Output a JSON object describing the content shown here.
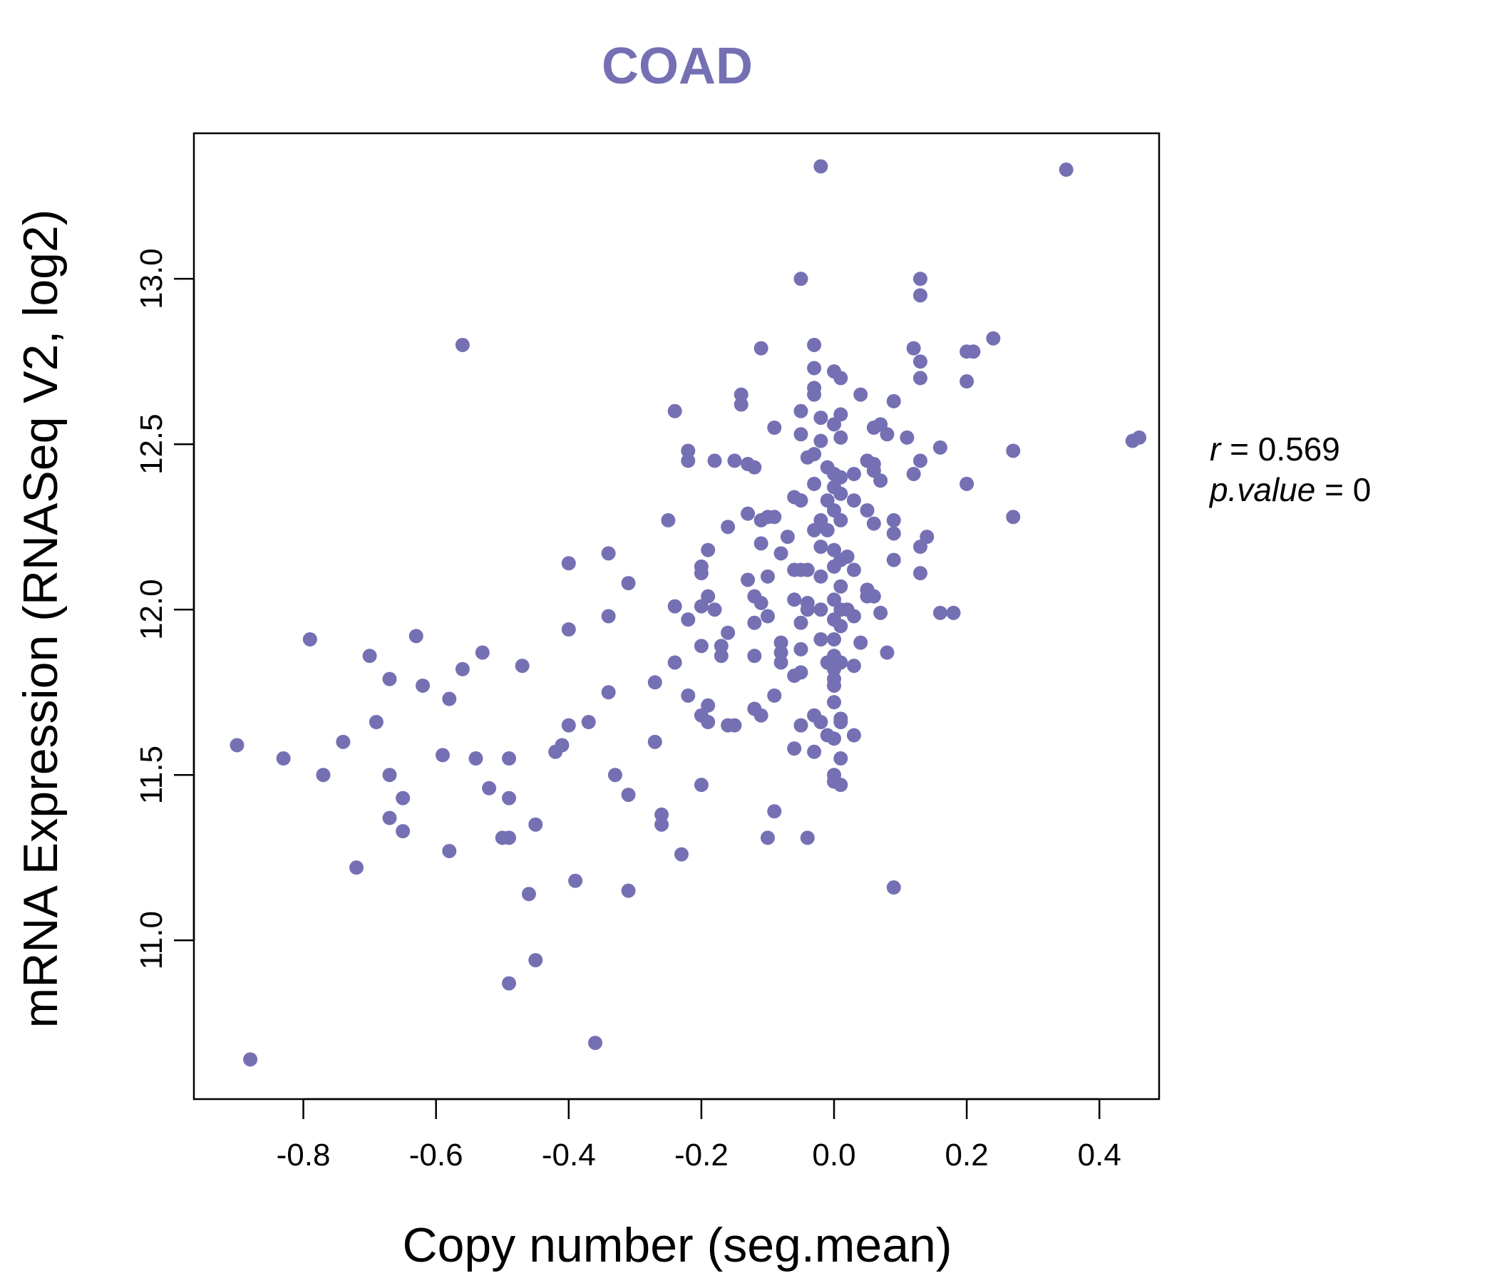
{
  "chart_data": {
    "type": "scatter",
    "title": "COAD",
    "xlabel": "Copy number (seg.mean)",
    "ylabel": "mRNA Expression (RNASeq V2, log2)",
    "xlim": [
      -0.965,
      0.49
    ],
    "ylim": [
      10.52,
      13.44
    ],
    "xticks": [
      -0.8,
      -0.6,
      -0.4,
      -0.2,
      0.0,
      0.2,
      0.4
    ],
    "xtick_labels": [
      "-0.8",
      "-0.6",
      "-0.4",
      "-0.2",
      "0.0",
      "0.2",
      "0.4"
    ],
    "yticks": [
      11.0,
      11.5,
      12.0,
      12.5,
      13.0
    ],
    "ytick_labels": [
      "11.0",
      "11.5",
      "12.0",
      "12.5",
      "13.0"
    ],
    "stats": {
      "r_label": "r",
      "r_value": "0.569",
      "p_label": "p.value",
      "p_value": "0"
    },
    "color": "#7570b3",
    "points": [
      [
        -0.02,
        13.34
      ],
      [
        0.35,
        13.33
      ],
      [
        -0.05,
        13.0
      ],
      [
        0.13,
        13.0
      ],
      [
        0.13,
        12.95
      ],
      [
        -0.56,
        12.8
      ],
      [
        -0.03,
        12.8
      ],
      [
        -0.11,
        12.79
      ],
      [
        0.12,
        12.79
      ],
      [
        0.2,
        12.78
      ],
      [
        0.21,
        12.78
      ],
      [
        0.24,
        12.82
      ],
      [
        0.13,
        12.75
      ],
      [
        0.0,
        12.72
      ],
      [
        -0.03,
        12.73
      ],
      [
        0.01,
        12.7
      ],
      [
        0.13,
        12.7
      ],
      [
        0.2,
        12.69
      ],
      [
        -0.03,
        12.67
      ],
      [
        -0.03,
        12.65
      ],
      [
        -0.14,
        12.65
      ],
      [
        0.04,
        12.65
      ],
      [
        -0.14,
        12.62
      ],
      [
        0.09,
        12.63
      ],
      [
        -0.24,
        12.6
      ],
      [
        -0.05,
        12.6
      ],
      [
        -0.02,
        12.58
      ],
      [
        0.01,
        12.59
      ],
      [
        0.0,
        12.56
      ],
      [
        0.06,
        12.55
      ],
      [
        0.07,
        12.56
      ],
      [
        -0.09,
        12.55
      ],
      [
        -0.05,
        12.53
      ],
      [
        0.08,
        12.53
      ],
      [
        0.01,
        12.52
      ],
      [
        0.11,
        12.52
      ],
      [
        -0.02,
        12.51
      ],
      [
        0.45,
        12.51
      ],
      [
        0.46,
        12.52
      ],
      [
        -0.22,
        12.48
      ],
      [
        0.16,
        12.49
      ],
      [
        0.27,
        12.48
      ],
      [
        -0.03,
        12.47
      ],
      [
        -0.04,
        12.46
      ],
      [
        -0.22,
        12.45
      ],
      [
        -0.18,
        12.45
      ],
      [
        -0.15,
        12.45
      ],
      [
        -0.13,
        12.44
      ],
      [
        0.05,
        12.45
      ],
      [
        0.06,
        12.44
      ],
      [
        0.13,
        12.45
      ],
      [
        -0.12,
        12.43
      ],
      [
        -0.01,
        12.43
      ],
      [
        0.0,
        12.41
      ],
      [
        0.03,
        12.41
      ],
      [
        0.06,
        12.42
      ],
      [
        0.12,
        12.41
      ],
      [
        0.01,
        12.4
      ],
      [
        0.07,
        12.39
      ],
      [
        0.2,
        12.38
      ],
      [
        -0.03,
        12.38
      ],
      [
        0.0,
        12.37
      ],
      [
        -0.06,
        12.34
      ],
      [
        -0.05,
        12.33
      ],
      [
        -0.01,
        12.33
      ],
      [
        0.01,
        12.35
      ],
      [
        0.03,
        12.33
      ],
      [
        0.0,
        12.3
      ],
      [
        0.05,
        12.3
      ],
      [
        -0.13,
        12.29
      ],
      [
        -0.1,
        12.28
      ],
      [
        -0.09,
        12.28
      ],
      [
        -0.11,
        12.27
      ],
      [
        -0.25,
        12.27
      ],
      [
        -0.02,
        12.27
      ],
      [
        0.01,
        12.27
      ],
      [
        0.27,
        12.28
      ],
      [
        0.06,
        12.26
      ],
      [
        0.09,
        12.27
      ],
      [
        -0.16,
        12.25
      ],
      [
        -0.03,
        12.24
      ],
      [
        -0.01,
        12.24
      ],
      [
        0.09,
        12.23
      ],
      [
        0.14,
        12.22
      ],
      [
        -0.07,
        12.22
      ],
      [
        -0.11,
        12.2
      ],
      [
        -0.02,
        12.19
      ],
      [
        0.0,
        12.18
      ],
      [
        0.01,
        12.15
      ],
      [
        0.13,
        12.19
      ],
      [
        -0.19,
        12.18
      ],
      [
        -0.08,
        12.17
      ],
      [
        -0.34,
        12.17
      ],
      [
        0.02,
        12.16
      ],
      [
        0.09,
        12.15
      ],
      [
        -0.4,
        12.14
      ],
      [
        -0.2,
        12.13
      ],
      [
        -0.06,
        12.12
      ],
      [
        -0.05,
        12.12
      ],
      [
        -0.04,
        12.12
      ],
      [
        0.0,
        12.13
      ],
      [
        0.03,
        12.12
      ],
      [
        0.13,
        12.11
      ],
      [
        -0.2,
        12.11
      ],
      [
        -0.13,
        12.09
      ],
      [
        -0.1,
        12.1
      ],
      [
        -0.02,
        12.1
      ],
      [
        -0.31,
        12.08
      ],
      [
        0.01,
        12.07
      ],
      [
        0.05,
        12.06
      ],
      [
        0.06,
        12.04
      ],
      [
        0.05,
        12.04
      ],
      [
        -0.19,
        12.04
      ],
      [
        -0.12,
        12.04
      ],
      [
        -0.06,
        12.03
      ],
      [
        -0.04,
        12.02
      ],
      [
        0.0,
        12.03
      ],
      [
        -0.11,
        12.02
      ],
      [
        -0.04,
        12.0
      ],
      [
        -0.02,
        12.0
      ],
      [
        0.01,
        12.0
      ],
      [
        0.02,
        12.0
      ],
      [
        -0.24,
        12.01
      ],
      [
        -0.2,
        12.01
      ],
      [
        -0.18,
        12.0
      ],
      [
        0.07,
        11.99
      ],
      [
        0.16,
        11.99
      ],
      [
        0.18,
        11.99
      ],
      [
        -0.22,
        11.97
      ],
      [
        -0.34,
        11.98
      ],
      [
        0.03,
        11.98
      ],
      [
        -0.12,
        11.96
      ],
      [
        -0.1,
        11.98
      ],
      [
        -0.05,
        11.96
      ],
      [
        0.0,
        11.97
      ],
      [
        0.01,
        11.95
      ],
      [
        -0.4,
        11.94
      ],
      [
        -0.16,
        11.93
      ],
      [
        -0.63,
        11.92
      ],
      [
        -0.79,
        11.91
      ],
      [
        -0.02,
        11.91
      ],
      [
        0.0,
        11.91
      ],
      [
        0.04,
        11.9
      ],
      [
        -0.08,
        11.9
      ],
      [
        -0.17,
        11.89
      ],
      [
        -0.2,
        11.89
      ],
      [
        -0.05,
        11.88
      ],
      [
        -0.08,
        11.87
      ],
      [
        0.08,
        11.87
      ],
      [
        0.0,
        11.86
      ],
      [
        -0.53,
        11.87
      ],
      [
        -0.12,
        11.86
      ],
      [
        -0.17,
        11.86
      ],
      [
        -0.7,
        11.86
      ],
      [
        0.01,
        11.84
      ],
      [
        0.03,
        11.83
      ],
      [
        -0.01,
        11.84
      ],
      [
        -0.08,
        11.84
      ],
      [
        -0.24,
        11.84
      ],
      [
        -0.47,
        11.83
      ],
      [
        -0.56,
        11.82
      ],
      [
        0.0,
        11.82
      ],
      [
        -0.05,
        11.81
      ],
      [
        -0.67,
        11.79
      ],
      [
        -0.06,
        11.8
      ],
      [
        0.0,
        11.79
      ],
      [
        -0.27,
        11.78
      ],
      [
        -0.62,
        11.77
      ],
      [
        0.0,
        11.77
      ],
      [
        -0.34,
        11.75
      ],
      [
        -0.22,
        11.74
      ],
      [
        -0.09,
        11.74
      ],
      [
        -0.58,
        11.73
      ],
      [
        0.0,
        11.72
      ],
      [
        -0.19,
        11.71
      ],
      [
        -0.12,
        11.7
      ],
      [
        -0.03,
        11.68
      ],
      [
        -0.2,
        11.68
      ],
      [
        -0.11,
        11.68
      ],
      [
        0.01,
        11.67
      ],
      [
        -0.02,
        11.66
      ],
      [
        0.01,
        11.66
      ],
      [
        -0.69,
        11.66
      ],
      [
        -0.37,
        11.66
      ],
      [
        -0.19,
        11.66
      ],
      [
        -0.05,
        11.65
      ],
      [
        -0.4,
        11.65
      ],
      [
        -0.16,
        11.65
      ],
      [
        -0.15,
        11.65
      ],
      [
        0.03,
        11.62
      ],
      [
        -0.01,
        11.62
      ],
      [
        0.0,
        11.61
      ],
      [
        -0.74,
        11.6
      ],
      [
        -0.27,
        11.6
      ],
      [
        -0.41,
        11.59
      ],
      [
        -0.9,
        11.59
      ],
      [
        -0.06,
        11.58
      ],
      [
        -0.03,
        11.57
      ],
      [
        -0.42,
        11.57
      ],
      [
        -0.59,
        11.56
      ],
      [
        0.01,
        11.55
      ],
      [
        -0.54,
        11.55
      ],
      [
        -0.49,
        11.55
      ],
      [
        -0.83,
        11.55
      ],
      [
        -0.77,
        11.5
      ],
      [
        -0.67,
        11.5
      ],
      [
        -0.33,
        11.5
      ],
      [
        0.0,
        11.5
      ],
      [
        0.0,
        11.48
      ],
      [
        0.01,
        11.47
      ],
      [
        -0.2,
        11.47
      ],
      [
        -0.52,
        11.46
      ],
      [
        -0.31,
        11.44
      ],
      [
        -0.65,
        11.43
      ],
      [
        -0.49,
        11.43
      ],
      [
        -0.09,
        11.39
      ],
      [
        -0.26,
        11.38
      ],
      [
        -0.67,
        11.37
      ],
      [
        -0.26,
        11.35
      ],
      [
        -0.45,
        11.35
      ],
      [
        -0.65,
        11.33
      ],
      [
        -0.5,
        11.31
      ],
      [
        -0.49,
        11.31
      ],
      [
        -0.1,
        11.31
      ],
      [
        -0.04,
        11.31
      ],
      [
        -0.58,
        11.27
      ],
      [
        -0.23,
        11.26
      ],
      [
        -0.72,
        11.22
      ],
      [
        -0.39,
        11.18
      ],
      [
        0.09,
        11.16
      ],
      [
        -0.31,
        11.15
      ],
      [
        -0.46,
        11.14
      ],
      [
        -0.45,
        10.94
      ],
      [
        -0.49,
        10.87
      ],
      [
        -0.36,
        10.69
      ],
      [
        -0.88,
        10.64
      ]
    ]
  }
}
